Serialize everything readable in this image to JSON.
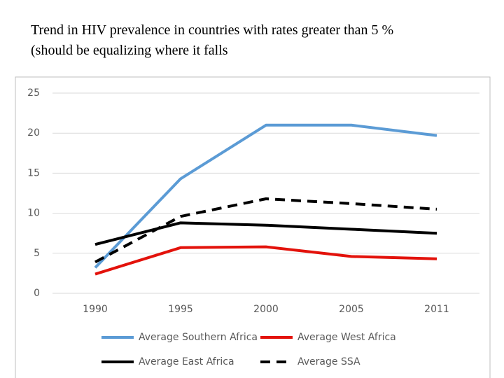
{
  "title_lines": [
    "Trend in HIV prevalence in countries with rates greater than 5 %",
    "(should be equalizing where it falls"
  ],
  "chart_data": {
    "type": "line",
    "categories": [
      "1990",
      "1995",
      "2000",
      "2005",
      "2011"
    ],
    "series": [
      {
        "name": "Average Southern Africa",
        "color": "#5b9bd5",
        "dashed": false,
        "values": [
          3.2,
          14.3,
          21.0,
          21.0,
          19.7
        ]
      },
      {
        "name": "Average West Africa",
        "color": "#e3120b",
        "dashed": false,
        "values": [
          2.4,
          5.7,
          5.8,
          4.6,
          4.3
        ]
      },
      {
        "name": "Average East Africa",
        "color": "#000000",
        "dashed": false,
        "values": [
          6.1,
          8.8,
          8.5,
          8.0,
          7.5
        ]
      },
      {
        "name": "Average SSA",
        "color": "#000000",
        "dashed": true,
        "values": [
          3.9,
          9.6,
          11.8,
          11.2,
          10.5
        ]
      }
    ],
    "ylim": [
      0,
      25
    ],
    "yticks": [
      0,
      5,
      10,
      15,
      20,
      25
    ],
    "grid": true,
    "legend": "bottom"
  }
}
